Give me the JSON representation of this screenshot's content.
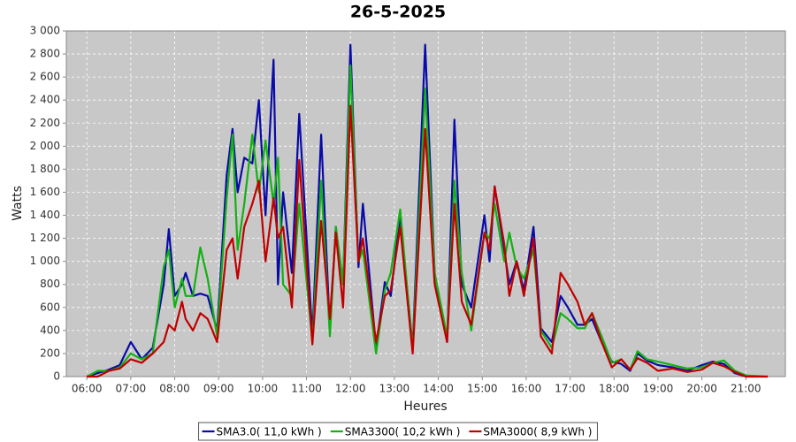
{
  "chart_data": {
    "type": "line",
    "title": "26-5-2025",
    "x_label": "Heures",
    "y_label": "Watts",
    "x": [
      360,
      375,
      390,
      405,
      420,
      435,
      450,
      465,
      472,
      480,
      490,
      495,
      505,
      515,
      525,
      538,
      551,
      559,
      566,
      575,
      586,
      595,
      604,
      615,
      621,
      628,
      640,
      650,
      668,
      680,
      692,
      700,
      710,
      720,
      731,
      737,
      755,
      767,
      775,
      788,
      805,
      822,
      835,
      852,
      862,
      872,
      885,
      903,
      910,
      917,
      930,
      937,
      947,
      957,
      970,
      980,
      995,
      1007,
      1017,
      1030,
      1040,
      1050,
      1063,
      1077,
      1090,
      1102,
      1112,
      1125,
      1140,
      1160,
      1180,
      1200,
      1215,
      1230,
      1245,
      1260,
      1290
    ],
    "series": [
      {
        "name": "SMA3.0( 11,0 kWh )",
        "color": "#0a0aa8",
        "values": [
          0,
          30,
          60,
          100,
          300,
          150,
          250,
          800,
          1280,
          700,
          800,
          900,
          700,
          720,
          700,
          400,
          1750,
          2150,
          1600,
          1900,
          1850,
          2400,
          1400,
          2750,
          800,
          1600,
          900,
          2280,
          350,
          2100,
          400,
          1300,
          800,
          2880,
          950,
          1500,
          250,
          820,
          700,
          1400,
          250,
          2880,
          900,
          300,
          2230,
          800,
          600,
          1400,
          1000,
          1650,
          1100,
          800,
          1000,
          750,
          1300,
          420,
          300,
          700,
          600,
          450,
          450,
          500,
          300,
          130,
          110,
          50,
          200,
          140,
          100,
          80,
          50,
          100,
          130,
          110,
          30,
          0,
          null
        ]
      },
      {
        "name": "SMA3300( 10,2 kWh )",
        "color": "#14b014",
        "values": [
          0,
          50,
          50,
          80,
          200,
          150,
          200,
          950,
          1100,
          600,
          850,
          700,
          700,
          1120,
          850,
          350,
          1550,
          2100,
          1100,
          1500,
          2100,
          1600,
          2050,
          1500,
          1900,
          800,
          700,
          1500,
          300,
          1700,
          350,
          1300,
          800,
          2700,
          1000,
          1100,
          200,
          750,
          900,
          1450,
          230,
          2500,
          900,
          350,
          1700,
          900,
          400,
          1250,
          1200,
          1500,
          1000,
          1250,
          950,
          850,
          1100,
          400,
          250,
          550,
          500,
          420,
          420,
          550,
          350,
          120,
          150,
          60,
          220,
          150,
          130,
          100,
          70,
          80,
          120,
          140,
          50,
          10,
          0
        ]
      },
      {
        "name": "SMA3000( 8,9 kWh )",
        "color": "#c00000",
        "values": [
          0,
          0,
          50,
          70,
          150,
          120,
          200,
          300,
          450,
          400,
          650,
          500,
          400,
          550,
          500,
          300,
          1100,
          1200,
          850,
          1300,
          1500,
          1700,
          1000,
          1550,
          1200,
          1300,
          600,
          1880,
          280,
          1350,
          500,
          1250,
          600,
          2350,
          1000,
          1200,
          300,
          700,
          750,
          1300,
          200,
          2150,
          800,
          300,
          1500,
          650,
          450,
          1250,
          1100,
          1650,
          1150,
          700,
          1000,
          700,
          1200,
          350,
          200,
          900,
          800,
          650,
          450,
          550,
          300,
          80,
          150,
          60,
          160,
          120,
          50,
          70,
          40,
          60,
          120,
          90,
          40,
          0,
          0
        ]
      }
    ],
    "xlim": [
      332,
      1314
    ],
    "xticks": [
      {
        "value": 360,
        "label": "06:00"
      },
      {
        "value": 420,
        "label": "07:00"
      },
      {
        "value": 480,
        "label": "08:00"
      },
      {
        "value": 540,
        "label": "09:00"
      },
      {
        "value": 600,
        "label": "10:00"
      },
      {
        "value": 660,
        "label": "11:00"
      },
      {
        "value": 720,
        "label": "12:00"
      },
      {
        "value": 780,
        "label": "13:00"
      },
      {
        "value": 840,
        "label": "14:00"
      },
      {
        "value": 900,
        "label": "15:00"
      },
      {
        "value": 960,
        "label": "16:00"
      },
      {
        "value": 1020,
        "label": "17:00"
      },
      {
        "value": 1080,
        "label": "18:00"
      },
      {
        "value": 1140,
        "label": "19:00"
      },
      {
        "value": 1200,
        "label": "20:00"
      },
      {
        "value": 1260,
        "label": "21:00"
      }
    ],
    "ylim": [
      0,
      3000
    ],
    "yticks": [
      0,
      {
        "value": 200,
        "label": "200"
      },
      {
        "value": 400,
        "label": "400"
      },
      {
        "value": 600,
        "label": "600"
      },
      {
        "value": 800,
        "label": "800"
      },
      {
        "value": 1000,
        "label": "1 000"
      },
      {
        "value": 1200,
        "label": "1 200"
      },
      {
        "value": 1400,
        "label": "1 400"
      },
      {
        "value": 1600,
        "label": "1 600"
      },
      {
        "value": 1800,
        "label": "1 800"
      },
      {
        "value": 2000,
        "label": "2 000"
      },
      {
        "value": 2200,
        "label": "2 200"
      },
      {
        "value": 2400,
        "label": "2 400"
      },
      {
        "value": 2600,
        "label": "2 600"
      },
      {
        "value": 2800,
        "label": "2 800"
      },
      {
        "value": 3000,
        "label": "3 000"
      }
    ],
    "grid": true,
    "legend": "bottom"
  }
}
